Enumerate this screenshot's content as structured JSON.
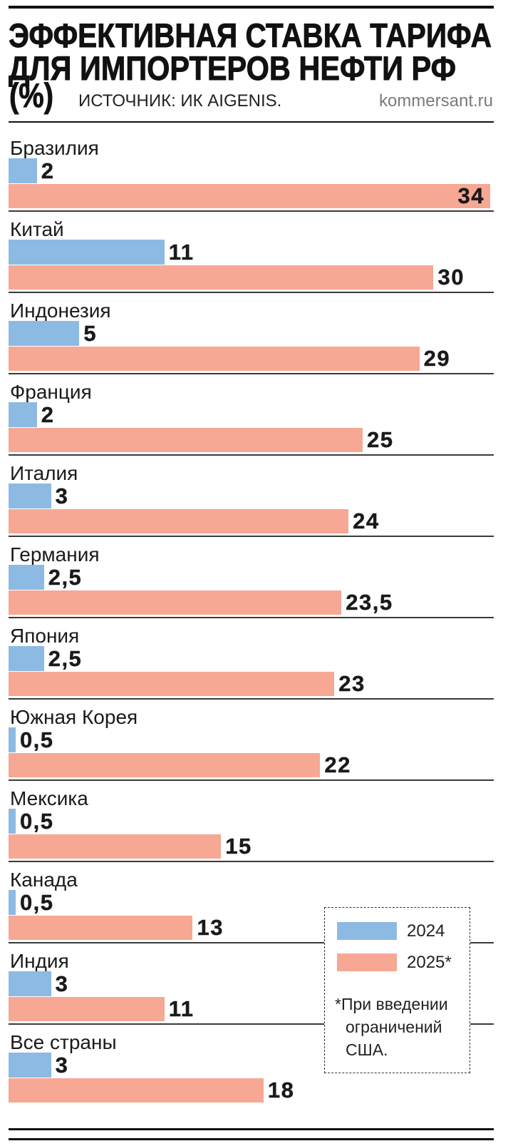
{
  "header": {
    "source": "ИСТОЧНИК: ИК AIGENIS.",
    "site": "kommersant.ru"
  },
  "chart_data": {
    "type": "bar",
    "orientation": "horizontal",
    "title_lines": [
      "ЭФФЕКТИВНАЯ СТАВКА ТАРИФА",
      "ДЛЯ ИМПОРТЕРОВ НЕФТИ РФ",
      "(%)"
    ],
    "categories": [
      "Бразилия",
      "Китай",
      "Индонезия",
      "Франция",
      "Италия",
      "Германия",
      "Япония",
      "Южная Корея",
      "Мексика",
      "Канада",
      "Индия",
      "Все страны"
    ],
    "series": [
      {
        "name": "2024",
        "color": "#8DBAE3",
        "values": [
          2,
          11,
          5,
          2,
          3,
          2.5,
          2.5,
          0.5,
          0.5,
          0.5,
          3,
          3
        ]
      },
      {
        "name": "2025*",
        "color": "#F6A894",
        "values": [
          34,
          30,
          29,
          25,
          24,
          23.5,
          23,
          22,
          15,
          13,
          11,
          18
        ]
      }
    ],
    "xlim": [
      0,
      34
    ],
    "grid": false,
    "data_labels": true,
    "legend_position": "bottom-right",
    "footnote_lines": [
      "*При введении",
      "ограничений",
      "США."
    ]
  }
}
